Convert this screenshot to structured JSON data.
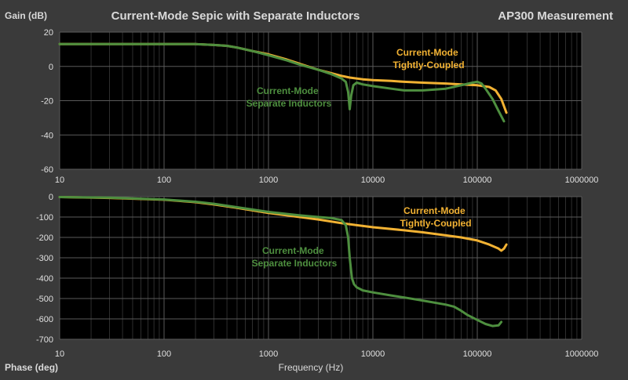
{
  "colors": {
    "background": "#3a3a3a",
    "plot_bg": "#000000",
    "grid": "#5a5a5a",
    "tightly": "#f2b233",
    "separate": "#4e8f3f",
    "text": "#d9d9d9"
  },
  "chart_data": [
    {
      "type": "line",
      "title": "Current-Mode Sepic with Separate Inductors",
      "subtitle": "AP300 Measurement",
      "ylabel": "Gain (dB)",
      "xscale": "log",
      "xlim": [
        10,
        1000000
      ],
      "ylim": [
        -60,
        20
      ],
      "xticks": [
        "10",
        "100",
        "1000",
        "10000",
        "100000",
        "1000000"
      ],
      "yticks": [
        "20",
        "0",
        "-20",
        "-40",
        "-60"
      ],
      "grid": true,
      "series": [
        {
          "name": "Current-Mode Tightly-Coupled",
          "label_lines": [
            "Current-Mode",
            "Tightly-Coupled"
          ],
          "color": "#f2b233",
          "x": [
            10,
            100,
            200,
            300,
            400,
            500,
            700,
            1000,
            1500,
            2000,
            3000,
            4000,
            5000,
            6000,
            8000,
            10000,
            15000,
            20000,
            30000,
            50000,
            70000,
            100000,
            130000,
            150000,
            170000,
            190000
          ],
          "y": [
            13,
            13,
            13,
            12.5,
            12,
            11,
            9,
            7,
            4,
            1.5,
            -2,
            -4,
            -5.5,
            -6.5,
            -7.5,
            -8,
            -8.5,
            -9,
            -9.5,
            -10,
            -10.5,
            -11,
            -12,
            -14,
            -19,
            -27
          ]
        },
        {
          "name": "Current-Mode Separate Inductors",
          "label_lines": [
            "Current-Mode",
            "Separate Inductors"
          ],
          "color": "#4e8f3f",
          "x": [
            10,
            100,
            200,
            300,
            400,
            500,
            700,
            1000,
            1500,
            2000,
            3000,
            4000,
            5000,
            5500,
            5800,
            6000,
            6200,
            6500,
            7000,
            8000,
            10000,
            15000,
            20000,
            30000,
            50000,
            70000,
            90000,
            100000,
            110000,
            120000,
            140000,
            160000,
            180000
          ],
          "y": [
            13,
            13,
            13,
            12.5,
            12,
            11,
            9,
            6.5,
            3.5,
            1,
            -2,
            -4.5,
            -7,
            -9,
            -15,
            -25,
            -17,
            -11,
            -9.5,
            -10.5,
            -11.5,
            -13,
            -14,
            -14,
            -13,
            -11,
            -9.5,
            -9,
            -10,
            -13,
            -19,
            -26,
            -32
          ]
        }
      ]
    },
    {
      "type": "line",
      "ylabel": "Phase (deg)",
      "xlabel": "Frequency (Hz)",
      "xscale": "log",
      "xlim": [
        10,
        1000000
      ],
      "ylim": [
        -700,
        0
      ],
      "xticks": [
        "10",
        "100",
        "1000",
        "10000",
        "100000",
        "1000000"
      ],
      "yticks": [
        "0",
        "-100",
        "-200",
        "-300",
        "-400",
        "-500",
        "-600",
        "-700"
      ],
      "grid": true,
      "series": [
        {
          "name": "Current-Mode Tightly-Coupled",
          "label_lines": [
            "Current-Mode",
            "Tightly-Coupled"
          ],
          "color": "#f2b233",
          "x": [
            10,
            30,
            100,
            200,
            300,
            500,
            1000,
            2000,
            3000,
            5000,
            7000,
            10000,
            20000,
            30000,
            50000,
            70000,
            100000,
            130000,
            160000,
            170000,
            180000,
            190000
          ],
          "y": [
            -2,
            -6,
            -15,
            -27,
            -38,
            -55,
            -80,
            -100,
            -112,
            -130,
            -140,
            -150,
            -165,
            -175,
            -190,
            -200,
            -215,
            -235,
            -255,
            -265,
            -255,
            -235
          ]
        },
        {
          "name": "Current-Mode Separate Inductors",
          "label_lines": [
            "Current-Mode",
            "Separate Inductors"
          ],
          "color": "#4e8f3f",
          "x": [
            10,
            30,
            100,
            200,
            300,
            500,
            1000,
            2000,
            3000,
            4000,
            5000,
            5500,
            5800,
            6000,
            6300,
            6600,
            7000,
            8000,
            10000,
            15000,
            20000,
            30000,
            50000,
            60000,
            70000,
            80000,
            100000,
            120000,
            140000,
            160000,
            170000
          ],
          "y": [
            -2,
            -5,
            -14,
            -25,
            -35,
            -52,
            -75,
            -92,
            -100,
            -105,
            -115,
            -140,
            -200,
            -300,
            -400,
            -430,
            -445,
            -460,
            -470,
            -485,
            -495,
            -510,
            -530,
            -540,
            -560,
            -580,
            -605,
            -625,
            -635,
            -632,
            -615
          ]
        }
      ]
    }
  ]
}
